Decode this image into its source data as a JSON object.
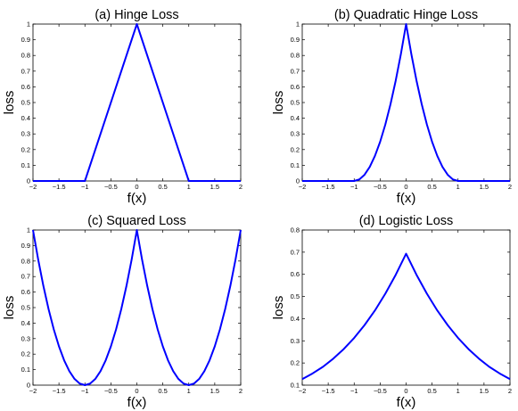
{
  "chart_data": [
    {
      "type": "line",
      "title": "(a) Hinge Loss",
      "xlabel": "f(x)",
      "ylabel": "loss",
      "xlim": [
        -2,
        2
      ],
      "ylim": [
        0,
        1
      ],
      "xticks": [
        "−2",
        "−1.5",
        "−1",
        "−0.5",
        "0",
        "0.5",
        "1",
        "1.5",
        "2"
      ],
      "yticks": [
        "0",
        "0.1",
        "0.2",
        "0.3",
        "0.4",
        "0.5",
        "0.6",
        "0.7",
        "0.8",
        "0.9",
        "1"
      ],
      "color": "#0000ff",
      "series": [
        {
          "x": [
            -2,
            -1,
            0,
            1,
            2
          ],
          "y": [
            0,
            0,
            1,
            0,
            0
          ]
        }
      ]
    },
    {
      "type": "line",
      "title": "(b) Quadratic Hinge Loss",
      "xlabel": "f(x)",
      "ylabel": "loss",
      "xlim": [
        -2,
        2
      ],
      "ylim": [
        0,
        1
      ],
      "xticks": [
        "−2",
        "−1.5",
        "−1",
        "−0.5",
        "0",
        "0.5",
        "1",
        "1.5",
        "2"
      ],
      "yticks": [
        "0",
        "0.1",
        "0.2",
        "0.3",
        "0.4",
        "0.5",
        "0.6",
        "0.7",
        "0.8",
        "0.9",
        "1"
      ],
      "color": "#0000ff",
      "series": [
        {
          "x": [
            -2,
            -1,
            -0.9,
            -0.8,
            -0.7,
            -0.6,
            -0.5,
            -0.4,
            -0.3,
            -0.2,
            -0.1,
            0,
            0.1,
            0.2,
            0.3,
            0.4,
            0.5,
            0.6,
            0.7,
            0.8,
            0.9,
            1,
            2
          ],
          "y": [
            0,
            0,
            0.01,
            0.04,
            0.09,
            0.16,
            0.25,
            0.36,
            0.49,
            0.64,
            0.81,
            1,
            0.81,
            0.64,
            0.49,
            0.36,
            0.25,
            0.16,
            0.09,
            0.04,
            0.01,
            0,
            0
          ]
        }
      ]
    },
    {
      "type": "line",
      "title": "(c) Squared Loss",
      "xlabel": "f(x)",
      "ylabel": "loss",
      "xlim": [
        -2,
        2
      ],
      "ylim": [
        0,
        1
      ],
      "xticks": [
        "−2",
        "−1.5",
        "−1",
        "−0.5",
        "0",
        "0.5",
        "1",
        "1.5",
        "2"
      ],
      "yticks": [
        "0",
        "0.1",
        "0.2",
        "0.3",
        "0.4",
        "0.5",
        "0.6",
        "0.7",
        "0.8",
        "0.9",
        "1"
      ],
      "color": "#0000ff",
      "series": [
        {
          "x": [
            -2,
            -1.9,
            -1.8,
            -1.7,
            -1.6,
            -1.5,
            -1.4,
            -1.3,
            -1.2,
            -1.1,
            -1,
            -0.9,
            -0.8,
            -0.7,
            -0.6,
            -0.5,
            -0.4,
            -0.3,
            -0.2,
            -0.1,
            0,
            0.1,
            0.2,
            0.3,
            0.4,
            0.5,
            0.6,
            0.7,
            0.8,
            0.9,
            1,
            1.1,
            1.2,
            1.3,
            1.4,
            1.5,
            1.6,
            1.7,
            1.8,
            1.9,
            2
          ],
          "y": [
            1,
            0.81,
            0.64,
            0.49,
            0.36,
            0.25,
            0.16,
            0.09,
            0.04,
            0.01,
            0,
            0.01,
            0.04,
            0.09,
            0.16,
            0.25,
            0.36,
            0.49,
            0.64,
            0.81,
            1,
            0.81,
            0.64,
            0.49,
            0.36,
            0.25,
            0.16,
            0.09,
            0.04,
            0.01,
            0,
            0.01,
            0.04,
            0.09,
            0.16,
            0.25,
            0.36,
            0.49,
            0.64,
            0.81,
            1
          ]
        }
      ]
    },
    {
      "type": "line",
      "title": "(d) Logistic Loss",
      "xlabel": "f(x)",
      "ylabel": "loss",
      "xlim": [
        -2,
        2
      ],
      "ylim": [
        0.1,
        0.8
      ],
      "xticks": [
        "−2",
        "−1.5",
        "−1",
        "−0.5",
        "0",
        "0.5",
        "1",
        "1.5",
        "2"
      ],
      "yticks": [
        "0.1",
        "0.2",
        "0.3",
        "0.4",
        "0.5",
        "0.6",
        "0.7",
        "0.8"
      ],
      "color": "#0000ff",
      "series": [
        {
          "x": [
            -2,
            -1.8,
            -1.6,
            -1.4,
            -1.2,
            -1,
            -0.8,
            -0.6,
            -0.4,
            -0.2,
            0,
            0.2,
            0.4,
            0.6,
            0.8,
            1,
            1.2,
            1.4,
            1.6,
            1.8,
            2
          ],
          "y": [
            0.127,
            0.153,
            0.183,
            0.22,
            0.263,
            0.313,
            0.371,
            0.437,
            0.513,
            0.598,
            0.693,
            0.598,
            0.513,
            0.437,
            0.371,
            0.313,
            0.263,
            0.22,
            0.183,
            0.153,
            0.127
          ]
        }
      ]
    }
  ]
}
